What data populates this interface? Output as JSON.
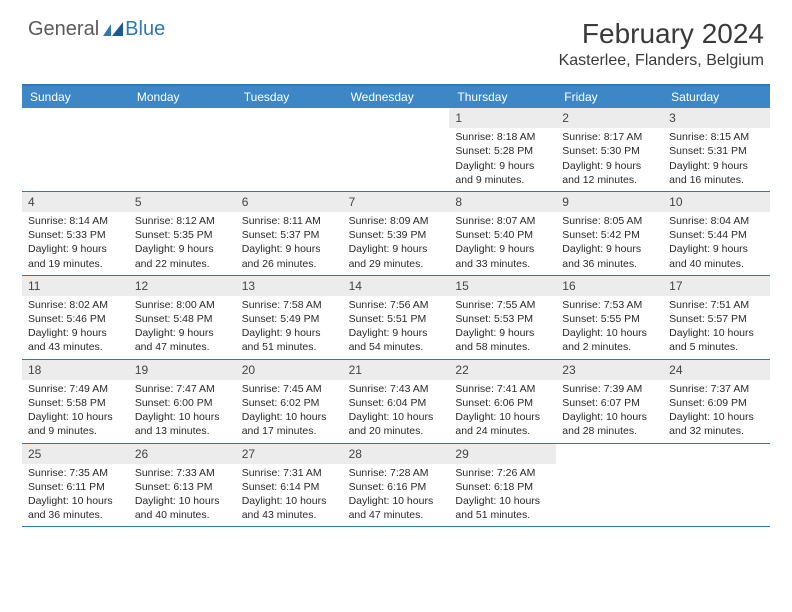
{
  "brand": {
    "general": "General",
    "blue": "Blue"
  },
  "title": "February 2024",
  "location": "Kasterlee, Flanders, Belgium",
  "colors": {
    "accent": "#3d87c7",
    "border": "#2f78b7",
    "dayHeaderBg": "#ececec",
    "text": "#2a2a2a",
    "background": "#ffffff"
  },
  "weekdays": [
    "Sunday",
    "Monday",
    "Tuesday",
    "Wednesday",
    "Thursday",
    "Friday",
    "Saturday"
  ],
  "weeks": [
    [
      {
        "n": "",
        "sunrise": "",
        "sunset": "",
        "daylight1": "",
        "daylight2": "",
        "empty": true
      },
      {
        "n": "",
        "sunrise": "",
        "sunset": "",
        "daylight1": "",
        "daylight2": "",
        "empty": true
      },
      {
        "n": "",
        "sunrise": "",
        "sunset": "",
        "daylight1": "",
        "daylight2": "",
        "empty": true
      },
      {
        "n": "",
        "sunrise": "",
        "sunset": "",
        "daylight1": "",
        "daylight2": "",
        "empty": true
      },
      {
        "n": "1",
        "sunrise": "Sunrise: 8:18 AM",
        "sunset": "Sunset: 5:28 PM",
        "daylight1": "Daylight: 9 hours",
        "daylight2": "and 9 minutes."
      },
      {
        "n": "2",
        "sunrise": "Sunrise: 8:17 AM",
        "sunset": "Sunset: 5:30 PM",
        "daylight1": "Daylight: 9 hours",
        "daylight2": "and 12 minutes."
      },
      {
        "n": "3",
        "sunrise": "Sunrise: 8:15 AM",
        "sunset": "Sunset: 5:31 PM",
        "daylight1": "Daylight: 9 hours",
        "daylight2": "and 16 minutes."
      }
    ],
    [
      {
        "n": "4",
        "sunrise": "Sunrise: 8:14 AM",
        "sunset": "Sunset: 5:33 PM",
        "daylight1": "Daylight: 9 hours",
        "daylight2": "and 19 minutes."
      },
      {
        "n": "5",
        "sunrise": "Sunrise: 8:12 AM",
        "sunset": "Sunset: 5:35 PM",
        "daylight1": "Daylight: 9 hours",
        "daylight2": "and 22 minutes."
      },
      {
        "n": "6",
        "sunrise": "Sunrise: 8:11 AM",
        "sunset": "Sunset: 5:37 PM",
        "daylight1": "Daylight: 9 hours",
        "daylight2": "and 26 minutes."
      },
      {
        "n": "7",
        "sunrise": "Sunrise: 8:09 AM",
        "sunset": "Sunset: 5:39 PM",
        "daylight1": "Daylight: 9 hours",
        "daylight2": "and 29 minutes."
      },
      {
        "n": "8",
        "sunrise": "Sunrise: 8:07 AM",
        "sunset": "Sunset: 5:40 PM",
        "daylight1": "Daylight: 9 hours",
        "daylight2": "and 33 minutes."
      },
      {
        "n": "9",
        "sunrise": "Sunrise: 8:05 AM",
        "sunset": "Sunset: 5:42 PM",
        "daylight1": "Daylight: 9 hours",
        "daylight2": "and 36 minutes."
      },
      {
        "n": "10",
        "sunrise": "Sunrise: 8:04 AM",
        "sunset": "Sunset: 5:44 PM",
        "daylight1": "Daylight: 9 hours",
        "daylight2": "and 40 minutes."
      }
    ],
    [
      {
        "n": "11",
        "sunrise": "Sunrise: 8:02 AM",
        "sunset": "Sunset: 5:46 PM",
        "daylight1": "Daylight: 9 hours",
        "daylight2": "and 43 minutes."
      },
      {
        "n": "12",
        "sunrise": "Sunrise: 8:00 AM",
        "sunset": "Sunset: 5:48 PM",
        "daylight1": "Daylight: 9 hours",
        "daylight2": "and 47 minutes."
      },
      {
        "n": "13",
        "sunrise": "Sunrise: 7:58 AM",
        "sunset": "Sunset: 5:49 PM",
        "daylight1": "Daylight: 9 hours",
        "daylight2": "and 51 minutes."
      },
      {
        "n": "14",
        "sunrise": "Sunrise: 7:56 AM",
        "sunset": "Sunset: 5:51 PM",
        "daylight1": "Daylight: 9 hours",
        "daylight2": "and 54 minutes."
      },
      {
        "n": "15",
        "sunrise": "Sunrise: 7:55 AM",
        "sunset": "Sunset: 5:53 PM",
        "daylight1": "Daylight: 9 hours",
        "daylight2": "and 58 minutes."
      },
      {
        "n": "16",
        "sunrise": "Sunrise: 7:53 AM",
        "sunset": "Sunset: 5:55 PM",
        "daylight1": "Daylight: 10 hours",
        "daylight2": "and 2 minutes."
      },
      {
        "n": "17",
        "sunrise": "Sunrise: 7:51 AM",
        "sunset": "Sunset: 5:57 PM",
        "daylight1": "Daylight: 10 hours",
        "daylight2": "and 5 minutes."
      }
    ],
    [
      {
        "n": "18",
        "sunrise": "Sunrise: 7:49 AM",
        "sunset": "Sunset: 5:58 PM",
        "daylight1": "Daylight: 10 hours",
        "daylight2": "and 9 minutes."
      },
      {
        "n": "19",
        "sunrise": "Sunrise: 7:47 AM",
        "sunset": "Sunset: 6:00 PM",
        "daylight1": "Daylight: 10 hours",
        "daylight2": "and 13 minutes."
      },
      {
        "n": "20",
        "sunrise": "Sunrise: 7:45 AM",
        "sunset": "Sunset: 6:02 PM",
        "daylight1": "Daylight: 10 hours",
        "daylight2": "and 17 minutes."
      },
      {
        "n": "21",
        "sunrise": "Sunrise: 7:43 AM",
        "sunset": "Sunset: 6:04 PM",
        "daylight1": "Daylight: 10 hours",
        "daylight2": "and 20 minutes."
      },
      {
        "n": "22",
        "sunrise": "Sunrise: 7:41 AM",
        "sunset": "Sunset: 6:06 PM",
        "daylight1": "Daylight: 10 hours",
        "daylight2": "and 24 minutes."
      },
      {
        "n": "23",
        "sunrise": "Sunrise: 7:39 AM",
        "sunset": "Sunset: 6:07 PM",
        "daylight1": "Daylight: 10 hours",
        "daylight2": "and 28 minutes."
      },
      {
        "n": "24",
        "sunrise": "Sunrise: 7:37 AM",
        "sunset": "Sunset: 6:09 PM",
        "daylight1": "Daylight: 10 hours",
        "daylight2": "and 32 minutes."
      }
    ],
    [
      {
        "n": "25",
        "sunrise": "Sunrise: 7:35 AM",
        "sunset": "Sunset: 6:11 PM",
        "daylight1": "Daylight: 10 hours",
        "daylight2": "and 36 minutes."
      },
      {
        "n": "26",
        "sunrise": "Sunrise: 7:33 AM",
        "sunset": "Sunset: 6:13 PM",
        "daylight1": "Daylight: 10 hours",
        "daylight2": "and 40 minutes."
      },
      {
        "n": "27",
        "sunrise": "Sunrise: 7:31 AM",
        "sunset": "Sunset: 6:14 PM",
        "daylight1": "Daylight: 10 hours",
        "daylight2": "and 43 minutes."
      },
      {
        "n": "28",
        "sunrise": "Sunrise: 7:28 AM",
        "sunset": "Sunset: 6:16 PM",
        "daylight1": "Daylight: 10 hours",
        "daylight2": "and 47 minutes."
      },
      {
        "n": "29",
        "sunrise": "Sunrise: 7:26 AM",
        "sunset": "Sunset: 6:18 PM",
        "daylight1": "Daylight: 10 hours",
        "daylight2": "and 51 minutes."
      },
      {
        "n": "",
        "sunrise": "",
        "sunset": "",
        "daylight1": "",
        "daylight2": "",
        "empty": true
      },
      {
        "n": "",
        "sunrise": "",
        "sunset": "",
        "daylight1": "",
        "daylight2": "",
        "empty": true
      }
    ]
  ]
}
